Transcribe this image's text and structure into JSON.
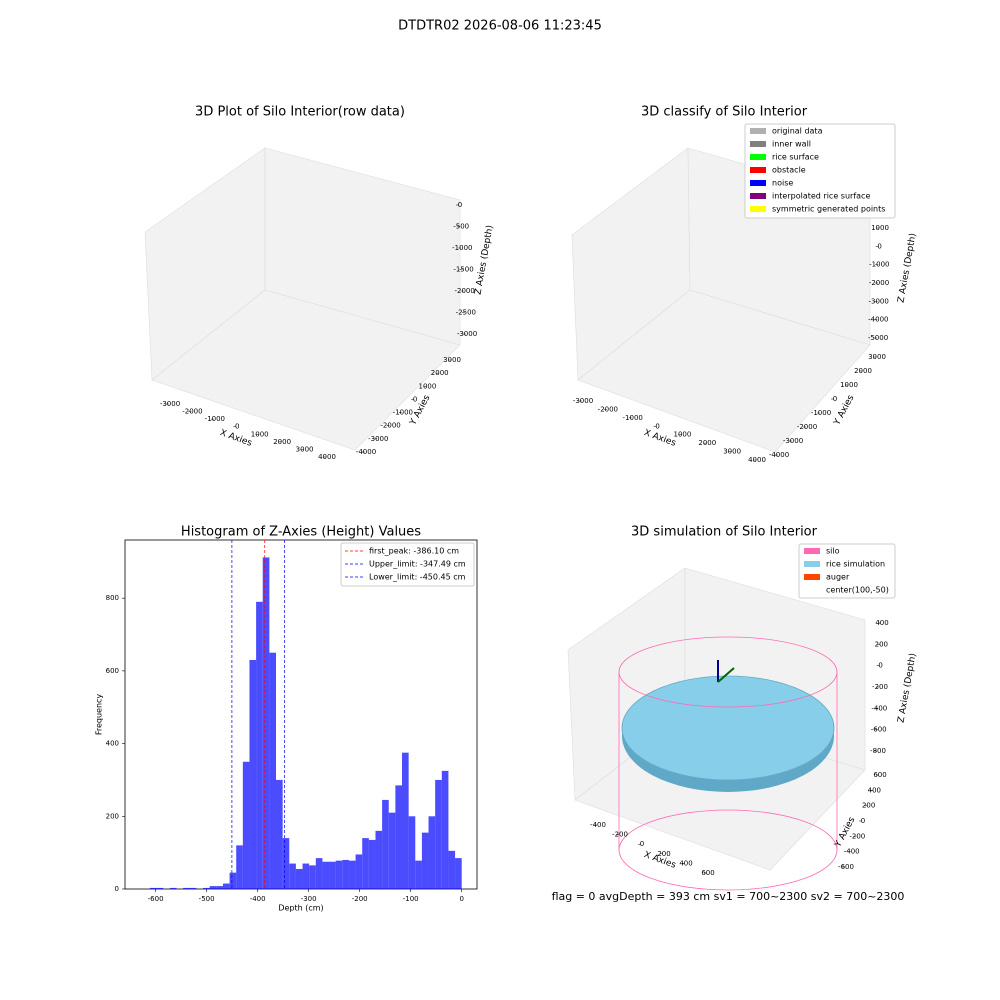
{
  "suptitle": "DTDTR02 2026-08-06 11:23:45",
  "footer": "flag = 0     avgDepth = 393 cm  sv1 = 700~2300  sv2 = 700~2300",
  "chart_data": [
    {
      "type": "scatter3d",
      "title": "3D Plot of Silo Interior(row data)",
      "xlabel": "X Axies",
      "ylabel": "Y Axies",
      "zlabel": "Z Axies (Depth)",
      "xlim": [
        -3000,
        4000
      ],
      "xticks": [
        -3000,
        -2000,
        -1000,
        0,
        1000,
        2000,
        3000,
        4000
      ],
      "ylim": [
        -4000,
        3000
      ],
      "yticks": [
        -4000,
        -3000,
        -2000,
        -1000,
        0,
        1000,
        2000,
        3000
      ],
      "zlim": [
        0,
        -3000
      ],
      "zticks": [
        0,
        -500,
        -1000,
        -1500,
        -2000,
        -2500,
        -3000
      ]
    },
    {
      "type": "scatter3d",
      "title": "3D classify of Silo Interior",
      "xlabel": "X Axies",
      "ylabel": "Y Axies",
      "zlabel": "Z Axies (Depth)",
      "xlim": [
        -3000,
        4000
      ],
      "xticks": [
        -3000,
        -2000,
        -1000,
        0,
        1000,
        2000,
        3000,
        4000
      ],
      "ylim": [
        -4000,
        3000
      ],
      "yticks": [
        -4000,
        -3000,
        -2000,
        -1000,
        0,
        1000,
        2000,
        3000
      ],
      "zlim": [
        1000,
        -5000
      ],
      "zticks": [
        1000,
        0,
        -1000,
        -2000,
        -3000,
        -4000,
        -5000
      ],
      "legend": [
        {
          "name": "original data",
          "color": "#b0b0b0"
        },
        {
          "name": "inner wall",
          "color": "#808080"
        },
        {
          "name": "rice surface",
          "color": "#00ff00"
        },
        {
          "name": "obstacle",
          "color": "#ff0000"
        },
        {
          "name": "noise",
          "color": "#0000ff"
        },
        {
          "name": "interpolated rice surface",
          "color": "#800080"
        },
        {
          "name": "symmetric generated points",
          "color": "#ffff00"
        }
      ]
    },
    {
      "type": "histogram",
      "title": "Histogram of Z-Axies (Height) Values",
      "xlabel": "Depth (cm)",
      "ylabel": "Frequency",
      "color": "#0000ff",
      "bins": [
        -650,
        -637,
        -624,
        -611,
        -598,
        -585,
        -572,
        -559,
        -546,
        -533,
        -520,
        -507,
        -494,
        -481,
        -468,
        -455,
        -442,
        -429,
        -416,
        -403,
        -390,
        -377,
        -364,
        -351,
        -338,
        -325,
        -312,
        -299,
        -286,
        -273,
        -260,
        -247,
        -234,
        -221,
        -208,
        -195,
        -182,
        -169,
        -156,
        -143,
        -130,
        -117,
        -104,
        -91,
        -78,
        -65,
        -52,
        -39,
        -26,
        -13,
        0
      ],
      "values": [
        0,
        0,
        0,
        3,
        3,
        0,
        3,
        0,
        3,
        3,
        0,
        3,
        8,
        8,
        15,
        45,
        120,
        350,
        630,
        790,
        912,
        650,
        300,
        140,
        70,
        55,
        70,
        65,
        85,
        75,
        75,
        78,
        80,
        78,
        95,
        140,
        135,
        160,
        245,
        210,
        285,
        375,
        200,
        78,
        155,
        200,
        300,
        325,
        105,
        85
      ],
      "xlim": [
        -660,
        30
      ],
      "xticks": [
        -600,
        -500,
        -400,
        -300,
        -200,
        -100,
        0
      ],
      "ylim": [
        0,
        960
      ],
      "yticks": [
        0,
        200,
        400,
        600,
        800
      ],
      "vlines": [
        {
          "label": "first_peak: -386.10 cm",
          "value": -386.1,
          "color": "#ff0000"
        },
        {
          "label": "Upper_limit: -347.49 cm",
          "value": -347.49,
          "color": "#0000ff"
        },
        {
          "label": "Lower_limit: -450.45 cm",
          "value": -450.45,
          "color": "#0000ff"
        }
      ]
    },
    {
      "type": "surface3d",
      "title": "3D simulation of Silo Interior",
      "xlabel": "X Axies",
      "ylabel": "Y Axies",
      "zlabel": "Z Axies (Depth)",
      "xlim": [
        -400,
        600
      ],
      "xticks": [
        -400,
        -200,
        0,
        200,
        400,
        600
      ],
      "ylim": [
        -600,
        600
      ],
      "yticks": [
        -600,
        -400,
        -200,
        0,
        200,
        400,
        600
      ],
      "zlim": [
        400,
        -800
      ],
      "zticks": [
        400,
        200,
        0,
        -200,
        -400,
        -600,
        -800
      ],
      "legend": [
        {
          "name": "silo",
          "color": "#ff69b4"
        },
        {
          "name": "rice simulation",
          "color": "#87ceeb"
        },
        {
          "name": "auger",
          "color": "#ff4500"
        },
        {
          "name": "center(100,-50)",
          "color": "#ffffff"
        }
      ]
    }
  ]
}
